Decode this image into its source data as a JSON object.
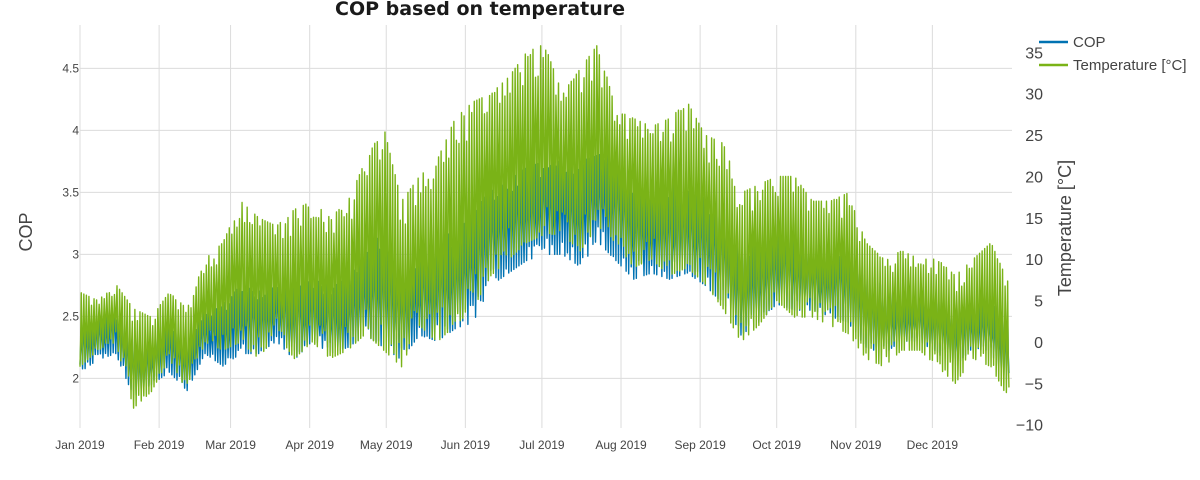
{
  "chart_data": {
    "type": "line",
    "title": "COP based on temperature",
    "ylabel": "COP",
    "y2label": "Temperature [°C]",
    "ylim": [
      1.6,
      4.85
    ],
    "y2lim": [
      -10.4,
      38.3
    ],
    "y_ticks": [
      2,
      2.5,
      3,
      3.5,
      4,
      4.5
    ],
    "y_tick_labels": [
      "2",
      "2.5",
      "3",
      "3.5",
      "4",
      "4.5"
    ],
    "y2_ticks": [
      -10,
      -5,
      0,
      5,
      10,
      15,
      20,
      25,
      30,
      35
    ],
    "y2_tick_labels": [
      "−10",
      "−5",
      "0",
      "5",
      "10",
      "15",
      "20",
      "25",
      "30",
      "35"
    ],
    "x_tick_labels": [
      "Jan 2019",
      "Feb 2019",
      "Mar 2019",
      "Apr 2019",
      "May 2019",
      "Jun 2019",
      "Jul 2019",
      "Aug 2019",
      "Sep 2019",
      "Oct 2019",
      "Nov 2019",
      "Dec 2019"
    ],
    "x_tick_days": [
      0,
      31,
      59,
      90,
      120,
      151,
      181,
      212,
      243,
      273,
      304,
      334
    ],
    "grid": true,
    "legend_position": "top-right",
    "series": [
      {
        "name": "COP",
        "color": "#0072b2",
        "axis": "left",
        "x": [
          "2019-01-01",
          "2019-01-08",
          "2019-01-15",
          "2019-01-22",
          "2019-01-29",
          "2019-02-05",
          "2019-02-12",
          "2019-02-19",
          "2019-02-26",
          "2019-03-05",
          "2019-03-12",
          "2019-03-19",
          "2019-03-26",
          "2019-04-02",
          "2019-04-09",
          "2019-04-16",
          "2019-04-23",
          "2019-04-30",
          "2019-05-07",
          "2019-05-14",
          "2019-05-21",
          "2019-05-28",
          "2019-06-04",
          "2019-06-11",
          "2019-06-18",
          "2019-06-25",
          "2019-07-02",
          "2019-07-09",
          "2019-07-16",
          "2019-07-23",
          "2019-07-30",
          "2019-08-06",
          "2019-08-13",
          "2019-08-20",
          "2019-08-27",
          "2019-09-03",
          "2019-09-10",
          "2019-09-17",
          "2019-09-24",
          "2019-10-01",
          "2019-10-08",
          "2019-10-15",
          "2019-10-22",
          "2019-10-29",
          "2019-11-05",
          "2019-11-12",
          "2019-11-19",
          "2019-11-26",
          "2019-12-03",
          "2019-12-10",
          "2019-12-17",
          "2019-12-24",
          "2019-12-31"
        ],
        "min": [
          2.05,
          2.15,
          2.2,
          1.85,
          1.95,
          2.05,
          1.9,
          2.2,
          2.1,
          2.2,
          2.2,
          2.3,
          2.15,
          2.3,
          2.2,
          2.25,
          2.35,
          2.25,
          2.15,
          2.35,
          2.3,
          2.4,
          2.45,
          2.75,
          2.85,
          2.95,
          3.0,
          3.0,
          2.9,
          3.1,
          2.95,
          2.8,
          2.85,
          2.8,
          2.85,
          2.75,
          2.6,
          2.35,
          2.45,
          2.6,
          2.55,
          2.55,
          2.5,
          2.45,
          2.25,
          2.2,
          2.3,
          2.3,
          2.2,
          2.1,
          2.25,
          2.2,
          1.95
        ],
        "max": [
          2.45,
          2.5,
          2.55,
          2.3,
          2.3,
          2.45,
          2.3,
          2.55,
          2.6,
          2.75,
          2.7,
          2.75,
          2.85,
          2.8,
          2.75,
          2.8,
          3.0,
          3.2,
          2.9,
          3.0,
          3.1,
          3.2,
          3.3,
          3.55,
          3.6,
          3.7,
          3.75,
          3.75,
          3.75,
          3.8,
          3.85,
          3.6,
          3.55,
          3.55,
          3.6,
          3.45,
          3.35,
          3.05,
          3.15,
          3.25,
          3.15,
          3.05,
          3.05,
          3.1,
          2.85,
          2.75,
          2.65,
          2.65,
          2.65,
          2.55,
          2.6,
          2.6,
          2.5
        ]
      },
      {
        "name": "Temperature [°C]",
        "color": "#7ab317",
        "axis": "right",
        "x": [
          "2019-01-01",
          "2019-01-08",
          "2019-01-15",
          "2019-01-22",
          "2019-01-29",
          "2019-02-05",
          "2019-02-12",
          "2019-02-19",
          "2019-02-26",
          "2019-03-05",
          "2019-03-12",
          "2019-03-19",
          "2019-03-26",
          "2019-04-02",
          "2019-04-09",
          "2019-04-16",
          "2019-04-23",
          "2019-04-30",
          "2019-05-07",
          "2019-05-14",
          "2019-05-21",
          "2019-05-28",
          "2019-06-04",
          "2019-06-11",
          "2019-06-18",
          "2019-06-25",
          "2019-07-02",
          "2019-07-09",
          "2019-07-16",
          "2019-07-23",
          "2019-07-30",
          "2019-08-06",
          "2019-08-13",
          "2019-08-20",
          "2019-08-27",
          "2019-09-03",
          "2019-09-10",
          "2019-09-17",
          "2019-09-24",
          "2019-10-01",
          "2019-10-08",
          "2019-10-15",
          "2019-10-22",
          "2019-10-29",
          "2019-11-05",
          "2019-11-12",
          "2019-11-19",
          "2019-11-26",
          "2019-12-03",
          "2019-12-10",
          "2019-12-17",
          "2019-12-24",
          "2019-12-31"
        ],
        "min": [
          -3,
          -1,
          0,
          -8,
          -6,
          -2,
          -6,
          0,
          -1,
          0,
          -2,
          1,
          -2,
          0,
          -2,
          -1,
          1,
          -1,
          -3,
          2,
          0,
          2,
          4,
          8,
          10,
          12,
          13,
          13,
          11,
          14,
          12,
          9,
          10,
          8,
          9,
          7,
          4,
          0,
          2,
          5,
          3,
          3,
          2,
          1,
          -2,
          -3,
          -1,
          -1,
          -3,
          -5,
          -2,
          -3,
          -7
        ],
        "max": [
          6,
          5,
          7,
          4,
          3,
          6,
          4,
          10,
          12,
          17,
          15,
          14,
          16,
          17,
          15,
          17,
          22,
          26,
          17,
          20,
          22,
          27,
          29,
          30,
          32,
          35,
          36,
          30,
          33,
          36,
          28,
          27,
          26,
          27,
          29,
          25,
          24,
          18,
          19,
          20,
          20,
          17,
          17,
          18,
          12,
          10,
          11,
          10,
          10,
          8,
          10,
          12,
          7
        ]
      }
    ]
  }
}
